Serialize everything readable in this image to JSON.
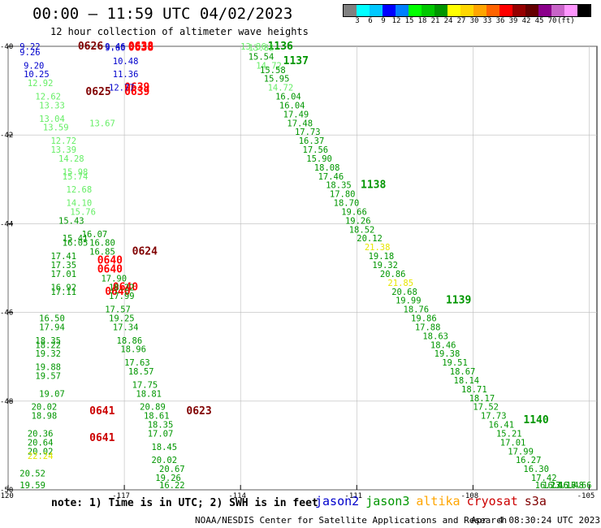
{
  "title": "00:00 – 11:59 UTC 04/02/2023",
  "subtitle": "12 hour collection of altimeter wave heights",
  "colorbar": {
    "colors": [
      "#808080",
      "#00ffff",
      "#00c8ff",
      "#0000ff",
      "#0080ff",
      "#00ff00",
      "#00c800",
      "#009600",
      "#ffff00",
      "#ffd700",
      "#ffa500",
      "#ff6400",
      "#ff0000",
      "#960000",
      "#640000",
      "#8b008b",
      "#c864c8",
      "#ff96ff",
      "#000000"
    ],
    "labels": [
      "3",
      "6",
      "9",
      "12",
      "15",
      "18",
      "21",
      "24",
      "27",
      "30",
      "33",
      "36",
      "39",
      "42",
      "45",
      "70",
      "(ft)"
    ]
  },
  "axes": {
    "lat_ticks": [
      "-40",
      "-42",
      "-44",
      "-46",
      "-48",
      "-50"
    ],
    "lon_ticks": [
      "-120",
      "-117",
      "-114",
      "-111",
      "-108",
      "-105"
    ]
  },
  "notes": "note: 1) Time is in UTC; 2) SWH is in feet",
  "legend": [
    {
      "name": "jason2",
      "color": "#0000cc"
    },
    {
      "name": "jason3",
      "color": "#009600"
    },
    {
      "name": "altika",
      "color": "#ffa500"
    },
    {
      "name": "cryosat",
      "color": "#cc0000"
    },
    {
      "name": "s3a",
      "color": "#800000"
    }
  ],
  "footer": "NOAA/NESDIS Center for Satellite Applications and Research",
  "footer_time": "Apr  4 08:30:24 UTC 2023",
  "tracks": [
    {
      "lat": -40.0,
      "lon": -118.2,
      "label": "0626",
      "color": "#800000",
      "bold": true
    },
    {
      "lat": -40.0,
      "lon": -116.9,
      "label": "0638",
      "color": "#ff0000",
      "bold": true
    },
    {
      "lat": -40.1,
      "lon": -116.9,
      "label": "0638",
      "color": "#ff0000",
      "bold": true
    },
    {
      "lat": -41.0,
      "lon": -117.0,
      "label": "0639",
      "color": "#ff0000",
      "bold": true
    },
    {
      "lat": -41.1,
      "lon": -118.0,
      "label": "0625",
      "color": "#800000",
      "bold": true
    },
    {
      "lat": -41.1,
      "lon": -117.0,
      "label": "0639",
      "color": "#ff0000",
      "bold": true
    },
    {
      "lat": -44.7,
      "lon": -116.8,
      "label": "0624",
      "color": "#800000",
      "bold": true
    },
    {
      "lat": -44.9,
      "lon": -117.7,
      "label": "0640",
      "color": "#ff0000",
      "bold": true
    },
    {
      "lat": -45.1,
      "lon": -117.7,
      "label": "0640",
      "color": "#ff0000",
      "bold": true
    },
    {
      "lat": -45.6,
      "lon": -117.5,
      "label": "0640",
      "color": "#ff0000",
      "bold": true
    },
    {
      "lat": -45.5,
      "lon": -117.3,
      "label": "0640",
      "color": "#ff0000",
      "bold": true
    },
    {
      "lat": -48.3,
      "lon": -117.9,
      "label": "0641",
      "color": "#cc0000",
      "bold": true
    },
    {
      "lat": -48.9,
      "lon": -117.9,
      "label": "0641",
      "color": "#cc0000",
      "bold": true
    },
    {
      "lat": -48.3,
      "lon": -115.4,
      "label": "0623",
      "color": "#800000",
      "bold": true
    },
    {
      "lat": -39.9,
      "lon": -113.3,
      "label": "1136",
      "color": "#009600",
      "bold": true
    },
    {
      "lat": -40.4,
      "lon": -112.9,
      "label": "1137",
      "color": "#009600",
      "bold": true
    },
    {
      "lat": -43.2,
      "lon": -110.9,
      "label": "1138",
      "color": "#009600",
      "bold": true
    },
    {
      "lat": -45.8,
      "lon": -108.7,
      "label": "1139",
      "color": "#009600",
      "bold": true
    },
    {
      "lat": -48.5,
      "lon": -106.7,
      "label": "1140",
      "color": "#009600",
      "bold": true
    },
    {
      "lat": -40.0,
      "lon": -119.7,
      "label": "9.22",
      "color": "#0000cc"
    },
    {
      "lat": -40.2,
      "lon": -119.7,
      "label": "9.26",
      "color": "#0000cc"
    },
    {
      "lat": -40.5,
      "lon": -119.6,
      "label": "9.20",
      "color": "#0000cc"
    },
    {
      "lat": -40.7,
      "lon": -119.6,
      "label": "10.25",
      "color": "#0000cc"
    },
    {
      "lat": -39.9,
      "lon": -117.5,
      "label": "9.46",
      "color": "#0000cc"
    },
    {
      "lat": -40.1,
      "lon": -117.5,
      "label": "9.60",
      "color": "#0000cc"
    },
    {
      "lat": -40.4,
      "lon": -117.3,
      "label": "10.48",
      "color": "#0000cc"
    },
    {
      "lat": -40.7,
      "lon": -117.3,
      "label": "11.36",
      "color": "#0000cc"
    },
    {
      "lat": -41.0,
      "lon": -117.4,
      "label": "12.77",
      "color": "#0000cc"
    },
    {
      "lat": -40.9,
      "lon": -119.5,
      "label": "12.92",
      "color": "#66ee66"
    },
    {
      "lat": -41.2,
      "lon": -119.3,
      "label": "12.62",
      "color": "#66ee66"
    },
    {
      "lat": -41.4,
      "lon": -119.2,
      "label": "13.33",
      "color": "#66ee66"
    },
    {
      "lat": -41.7,
      "lon": -119.2,
      "label": "13.04",
      "color": "#66ee66"
    },
    {
      "lat": -41.9,
      "lon": -119.1,
      "label": "13.59",
      "color": "#66ee66"
    },
    {
      "lat": -41.8,
      "lon": -117.9,
      "label": "13.67",
      "color": "#66ee66"
    },
    {
      "lat": -42.2,
      "lon": -118.9,
      "label": "12.72",
      "color": "#66ee66"
    },
    {
      "lat": -42.4,
      "lon": -118.9,
      "label": "13.39",
      "color": "#66ee66"
    },
    {
      "lat": -42.6,
      "lon": -118.7,
      "label": "14.28",
      "color": "#66ee66"
    },
    {
      "lat": -42.9,
      "lon": -118.6,
      "label": "15.98",
      "color": "#66ee66"
    },
    {
      "lat": -43.0,
      "lon": -118.6,
      "label": "15.74",
      "color": "#66ee66"
    },
    {
      "lat": -43.3,
      "lon": -118.5,
      "label": "12.68",
      "color": "#66ee66"
    },
    {
      "lat": -43.6,
      "lon": -118.5,
      "label": "14.10",
      "color": "#66ee66"
    },
    {
      "lat": -43.8,
      "lon": -118.4,
      "label": "15.76",
      "color": "#66ee66"
    },
    {
      "lat": -44.0,
      "lon": -118.7,
      "label": "15.43",
      "color": "#009600"
    },
    {
      "lat": -44.3,
      "lon": -118.1,
      "label": "16.07",
      "color": "#009600"
    },
    {
      "lat": -44.4,
      "lon": -118.6,
      "label": "15.41",
      "color": "#009600"
    },
    {
      "lat": -44.5,
      "lon": -118.6,
      "label": "16.05",
      "color": "#009600"
    },
    {
      "lat": -44.5,
      "lon": -117.9,
      "label": "16.80",
      "color": "#009600"
    },
    {
      "lat": -44.7,
      "lon": -117.9,
      "label": "16.85",
      "color": "#009600"
    },
    {
      "lat": -44.8,
      "lon": -118.9,
      "label": "17.41",
      "color": "#009600"
    },
    {
      "lat": -45.0,
      "lon": -118.9,
      "label": "17.35",
      "color": "#009600"
    },
    {
      "lat": -45.2,
      "lon": -118.9,
      "label": "17.01",
      "color": "#009600"
    },
    {
      "lat": -45.3,
      "lon": -117.6,
      "label": "17.90",
      "color": "#009600"
    },
    {
      "lat": -45.5,
      "lon": -118.9,
      "label": "16.92",
      "color": "#009600"
    },
    {
      "lat": -45.6,
      "lon": -118.9,
      "label": "17.11",
      "color": "#009600"
    },
    {
      "lat": -45.5,
      "lon": -117.4,
      "label": "18.22",
      "color": "#009600"
    },
    {
      "lat": -45.7,
      "lon": -117.4,
      "label": "17.99",
      "color": "#009600"
    },
    {
      "lat": -46.0,
      "lon": -117.5,
      "label": "17.57",
      "color": "#009600"
    },
    {
      "lat": -46.2,
      "lon": -119.2,
      "label": "16.50",
      "color": "#009600"
    },
    {
      "lat": -46.4,
      "lon": -119.2,
      "label": "17.94",
      "color": "#009600"
    },
    {
      "lat": -46.2,
      "lon": -117.4,
      "label": "19.25",
      "color": "#009600"
    },
    {
      "lat": -46.4,
      "lon": -117.3,
      "label": "17.34",
      "color": "#009600"
    },
    {
      "lat": -46.7,
      "lon": -117.2,
      "label": "18.86",
      "color": "#009600"
    },
    {
      "lat": -46.7,
      "lon": -119.3,
      "label": "18.35",
      "color": "#009600"
    },
    {
      "lat": -46.8,
      "lon": -119.3,
      "label": "18.22",
      "color": "#009600"
    },
    {
      "lat": -47.0,
      "lon": -119.3,
      "label": "19.32",
      "color": "#009600"
    },
    {
      "lat": -46.9,
      "lon": -117.1,
      "label": "18.96",
      "color": "#009600"
    },
    {
      "lat": -47.2,
      "lon": -117.0,
      "label": "17.63",
      "color": "#009600"
    },
    {
      "lat": -47.3,
      "lon": -119.3,
      "label": "19.88",
      "color": "#009600"
    },
    {
      "lat": -47.5,
      "lon": -119.3,
      "label": "19.57",
      "color": "#009600"
    },
    {
      "lat": -47.4,
      "lon": -116.9,
      "label": "18.57",
      "color": "#009600"
    },
    {
      "lat": -47.7,
      "lon": -116.8,
      "label": "17.75",
      "color": "#009600"
    },
    {
      "lat": -47.9,
      "lon": -119.2,
      "label": "19.07",
      "color": "#009600"
    },
    {
      "lat": -47.9,
      "lon": -116.7,
      "label": "18.81",
      "color": "#009600"
    },
    {
      "lat": -48.2,
      "lon": -116.6,
      "label": "20.89",
      "color": "#009600"
    },
    {
      "lat": -48.2,
      "lon": -119.4,
      "label": "20.02",
      "color": "#009600"
    },
    {
      "lat": -48.4,
      "lon": -119.4,
      "label": "18.98",
      "color": "#009600"
    },
    {
      "lat": -48.4,
      "lon": -116.5,
      "label": "18.61",
      "color": "#009600"
    },
    {
      "lat": -48.6,
      "lon": -116.4,
      "label": "18.35",
      "color": "#009600"
    },
    {
      "lat": -48.8,
      "lon": -116.4,
      "label": "17.07",
      "color": "#009600"
    },
    {
      "lat": -48.8,
      "lon": -119.5,
      "label": "20.36",
      "color": "#009600"
    },
    {
      "lat": -49.0,
      "lon": -119.5,
      "label": "20.64",
      "color": "#009600"
    },
    {
      "lat": -49.1,
      "lon": -116.3,
      "label": "18.45",
      "color": "#009600"
    },
    {
      "lat": -49.2,
      "lon": -119.5,
      "label": "20.02",
      "color": "#009600"
    },
    {
      "lat": -49.4,
      "lon": -116.3,
      "label": "20.02",
      "color": "#009600"
    },
    {
      "lat": -49.3,
      "lon": -119.5,
      "label": "22.24",
      "color": "#e6e600"
    },
    {
      "lat": -49.6,
      "lon": -116.1,
      "label": "20.67",
      "color": "#009600"
    },
    {
      "lat": -49.7,
      "lon": -119.7,
      "label": "20.52",
      "color": "#009600"
    },
    {
      "lat": -49.8,
      "lon": -116.2,
      "label": "19.26",
      "color": "#009600"
    },
    {
      "lat": -50.1,
      "lon": -116.1,
      "label": "16.22",
      "color": "#009600"
    },
    {
      "lat": -50.1,
      "lon": -119.7,
      "label": "19.59",
      "color": "#009600"
    },
    {
      "lat": -39.9,
      "lon": -114.0,
      "label": "13.36",
      "color": "#66ee66"
    },
    {
      "lat": -40.1,
      "lon": -113.8,
      "label": "13.82",
      "color": "#66ee66"
    },
    {
      "lat": -40.3,
      "lon": -113.8,
      "label": "15.54",
      "color": "#009600"
    },
    {
      "lat": -40.5,
      "lon": -113.6,
      "label": "14.72",
      "color": "#66ee66"
    },
    {
      "lat": -40.6,
      "lon": -113.5,
      "label": "15.58",
      "color": "#009600"
    },
    {
      "lat": -40.8,
      "lon": -113.4,
      "label": "15.95",
      "color": "#009600"
    },
    {
      "lat": -41.0,
      "lon": -113.3,
      "label": "14.72",
      "color": "#66ee66"
    },
    {
      "lat": -41.2,
      "lon": -113.1,
      "label": "16.04",
      "color": "#009600"
    },
    {
      "lat": -41.4,
      "lon": -113.0,
      "label": "16.04",
      "color": "#009600"
    },
    {
      "lat": -41.6,
      "lon": -112.9,
      "label": "17.49",
      "color": "#009600"
    },
    {
      "lat": -41.8,
      "lon": -112.8,
      "label": "17.48",
      "color": "#009600"
    },
    {
      "lat": -42.0,
      "lon": -112.6,
      "label": "17.73",
      "color": "#009600"
    },
    {
      "lat": -42.2,
      "lon": -112.5,
      "label": "16.37",
      "color": "#009600"
    },
    {
      "lat": -42.4,
      "lon": -112.4,
      "label": "17.56",
      "color": "#009600"
    },
    {
      "lat": -42.6,
      "lon": -112.3,
      "label": "15.90",
      "color": "#009600"
    },
    {
      "lat": -42.8,
      "lon": -112.1,
      "label": "18.08",
      "color": "#009600"
    },
    {
      "lat": -43.0,
      "lon": -112.0,
      "label": "17.46",
      "color": "#009600"
    },
    {
      "lat": -43.2,
      "lon": -111.8,
      "label": "18.35",
      "color": "#009600"
    },
    {
      "lat": -43.4,
      "lon": -111.7,
      "label": "17.80",
      "color": "#009600"
    },
    {
      "lat": -43.6,
      "lon": -111.6,
      "label": "18.70",
      "color": "#009600"
    },
    {
      "lat": -43.8,
      "lon": -111.4,
      "label": "19.66",
      "color": "#009600"
    },
    {
      "lat": -44.0,
      "lon": -111.3,
      "label": "19.26",
      "color": "#009600"
    },
    {
      "lat": -44.2,
      "lon": -111.2,
      "label": "18.52",
      "color": "#009600"
    },
    {
      "lat": -44.4,
      "lon": -111.0,
      "label": "20.12",
      "color": "#009600"
    },
    {
      "lat": -44.6,
      "lon": -110.8,
      "label": "21.38",
      "color": "#e6e600"
    },
    {
      "lat": -44.8,
      "lon": -110.7,
      "label": "19.18",
      "color": "#009600"
    },
    {
      "lat": -45.0,
      "lon": -110.6,
      "label": "19.32",
      "color": "#009600"
    },
    {
      "lat": -45.2,
      "lon": -110.4,
      "label": "20.86",
      "color": "#009600"
    },
    {
      "lat": -45.4,
      "lon": -110.2,
      "label": "21.85",
      "color": "#e6e600"
    },
    {
      "lat": -45.6,
      "lon": -110.1,
      "label": "20.68",
      "color": "#009600"
    },
    {
      "lat": -45.8,
      "lon": -110.0,
      "label": "19.99",
      "color": "#009600"
    },
    {
      "lat": -46.0,
      "lon": -109.8,
      "label": "18.76",
      "color": "#009600"
    },
    {
      "lat": -46.2,
      "lon": -109.6,
      "label": "19.86",
      "color": "#009600"
    },
    {
      "lat": -46.4,
      "lon": -109.5,
      "label": "17.88",
      "color": "#009600"
    },
    {
      "lat": -46.6,
      "lon": -109.3,
      "label": "18.63",
      "color": "#009600"
    },
    {
      "lat": -46.8,
      "lon": -109.1,
      "label": "18.46",
      "color": "#009600"
    },
    {
      "lat": -47.0,
      "lon": -109.0,
      "label": "19.38",
      "color": "#009600"
    },
    {
      "lat": -47.2,
      "lon": -108.8,
      "label": "19.51",
      "color": "#009600"
    },
    {
      "lat": -47.4,
      "lon": -108.6,
      "label": "18.67",
      "color": "#009600"
    },
    {
      "lat": -47.6,
      "lon": -108.5,
      "label": "18.14",
      "color": "#009600"
    },
    {
      "lat": -47.8,
      "lon": -108.3,
      "label": "18.71",
      "color": "#009600"
    },
    {
      "lat": -48.0,
      "lon": -108.1,
      "label": "18.17",
      "color": "#009600"
    },
    {
      "lat": -48.2,
      "lon": -108.0,
      "label": "17.52",
      "color": "#009600"
    },
    {
      "lat": -48.4,
      "lon": -107.8,
      "label": "17.73",
      "color": "#009600"
    },
    {
      "lat": -48.6,
      "lon": -107.6,
      "label": "16.41",
      "color": "#009600"
    },
    {
      "lat": -48.8,
      "lon": -107.4,
      "label": "15.21",
      "color": "#009600"
    },
    {
      "lat": -49.0,
      "lon": -107.3,
      "label": "17.01",
      "color": "#009600"
    },
    {
      "lat": -49.2,
      "lon": -107.1,
      "label": "17.99",
      "color": "#009600"
    },
    {
      "lat": -49.4,
      "lon": -106.9,
      "label": "16.27",
      "color": "#009600"
    },
    {
      "lat": -49.6,
      "lon": -106.7,
      "label": "16.30",
      "color": "#009600"
    },
    {
      "lat": -49.8,
      "lon": -106.5,
      "label": "17.42",
      "color": "#009600"
    },
    {
      "lat": -50.0,
      "lon": -106.4,
      "label": "16.23",
      "color": "#009600"
    },
    {
      "lat": -50.2,
      "lon": -106.2,
      "label": "16.46",
      "color": "#009600"
    },
    {
      "lat": -50.4,
      "lon": -106.0,
      "label": "17.17",
      "color": "#009600"
    },
    {
      "lat": -50.6,
      "lon": -105.8,
      "label": "16.48",
      "color": "#009600"
    },
    {
      "lat": -50.8,
      "lon": -105.6,
      "label": "16.66",
      "color": "#009600"
    }
  ]
}
